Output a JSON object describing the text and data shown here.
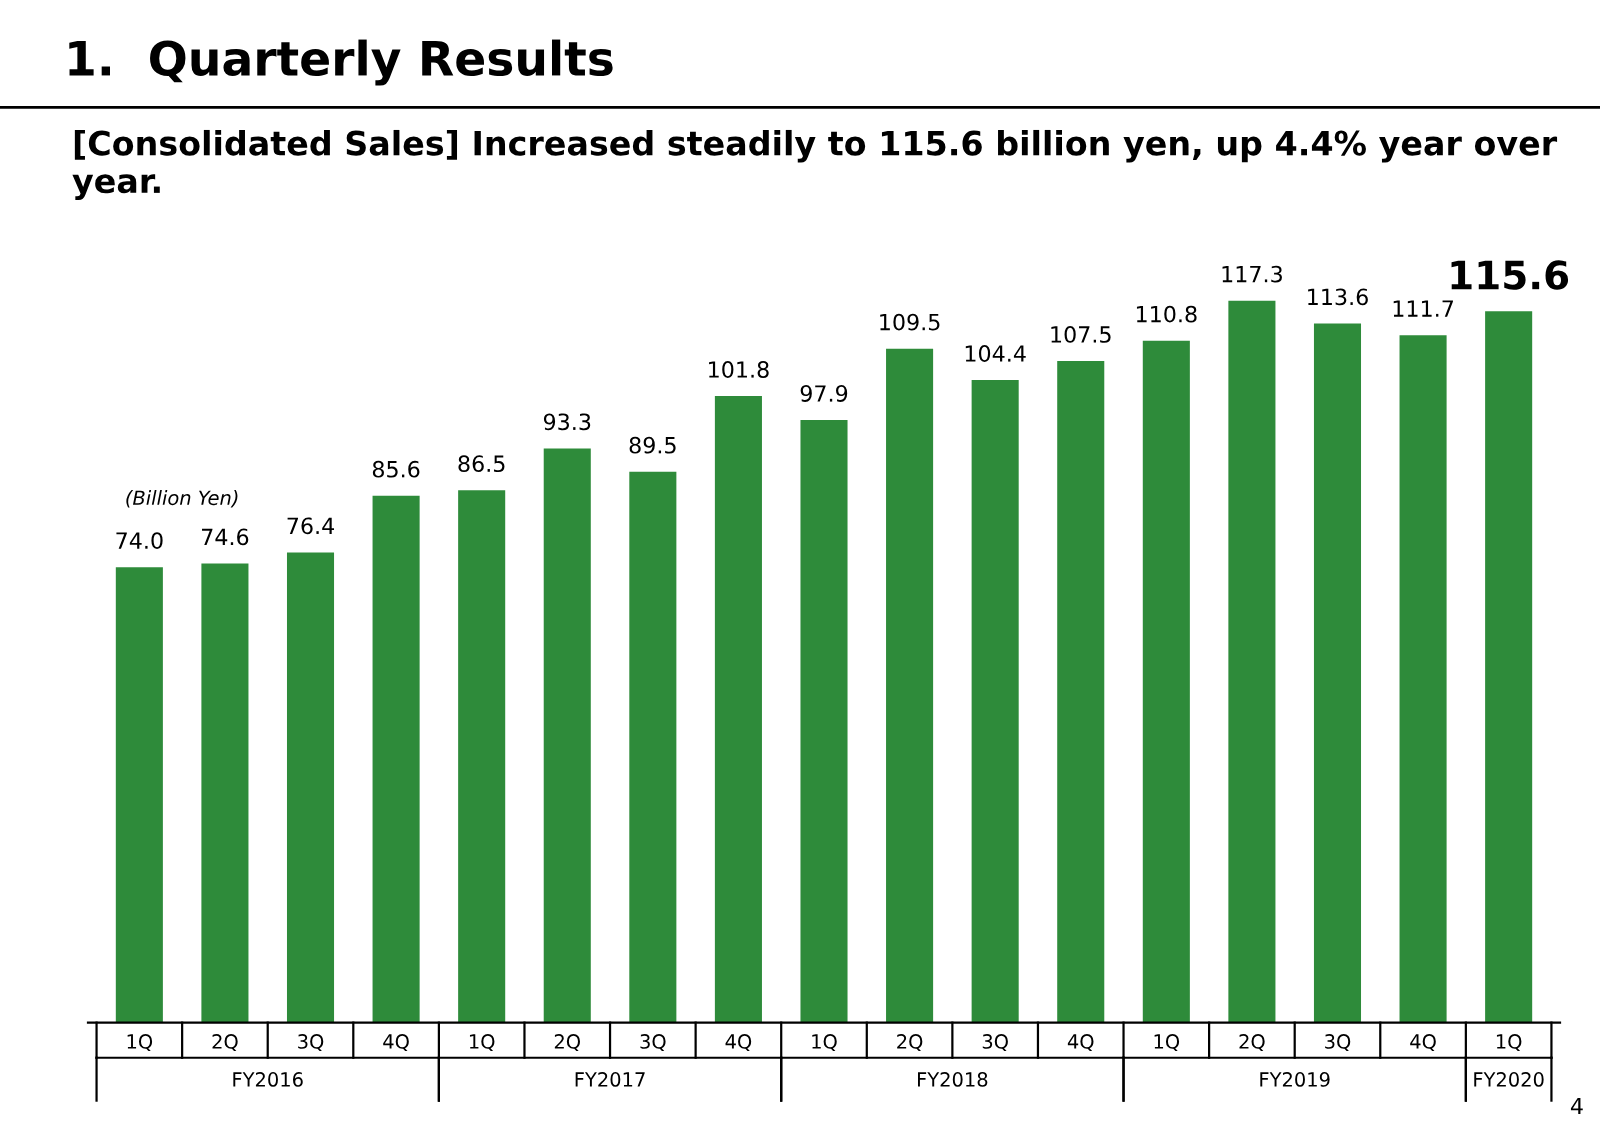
{
  "chart_data": {
    "type": "bar",
    "title": "1.  Quarterly Results",
    "subtitle": "[Consolidated Sales] Increased steadily to 115.6 billion yen, up 4.4% year over year.",
    "ylabel": "(Billion Yen)",
    "categories": [
      "1Q",
      "2Q",
      "3Q",
      "4Q",
      "1Q",
      "2Q",
      "3Q",
      "4Q",
      "1Q",
      "2Q",
      "3Q",
      "4Q",
      "1Q",
      "2Q",
      "3Q",
      "4Q",
      "1Q"
    ],
    "values": [
      74.0,
      74.6,
      76.4,
      85.6,
      86.5,
      93.3,
      89.5,
      101.8,
      97.9,
      109.5,
      104.4,
      107.5,
      110.8,
      117.3,
      113.6,
      111.7,
      115.6
    ],
    "value_labels": [
      "74.0",
      "74.6",
      "76.4",
      "85.6",
      "86.5",
      "93.3",
      "89.5",
      "101.8",
      "97.9",
      "109.5",
      "104.4",
      "107.5",
      "110.8",
      "117.3",
      "113.6",
      "111.7",
      "115.6"
    ],
    "color": "#2e8b3a",
    "annotations": [
      "FY2016",
      "FY2017",
      "FY2018",
      "FY2019",
      "FY2020",
      "4"
    ],
    "grid": false
  }
}
